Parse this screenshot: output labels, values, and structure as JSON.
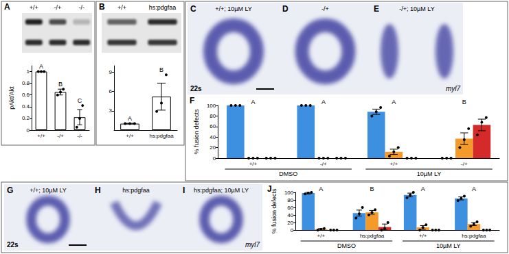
{
  "figure": {
    "blots": [
      {
        "panel": "A",
        "lanes": [
          "+/+",
          "-/+",
          "-/-"
        ]
      },
      {
        "panel": "B",
        "lanes": [
          "+/+",
          "hs:pdgfaa"
        ]
      }
    ],
    "images": [
      {
        "panel": "C",
        "caption": "+/+; 10µM LY",
        "stage": "22s"
      },
      {
        "panel": "D",
        "caption": "-/+"
      },
      {
        "panel": "E",
        "caption": "-/+; 10µM LY",
        "probe": "myl7"
      },
      {
        "panel": "G",
        "caption": "+/+; 10µM LY",
        "stage": "22s"
      },
      {
        "panel": "H",
        "caption": "hs:pdgfaa"
      },
      {
        "panel": "I",
        "caption": "hs:pdgfaa; 10µM LY",
        "probe": "myl7"
      }
    ]
  },
  "chart_data": [
    {
      "type": "bar",
      "ylabel": "pAkt/Akt",
      "categories": [
        "+/+",
        "-/+",
        "-/-"
      ],
      "values": [
        1,
        0.65,
        0.22
      ],
      "error": [
        0,
        0.05,
        0.13
      ],
      "points": [
        [
          1,
          1,
          1
        ],
        [
          0.6,
          0.65,
          0.7
        ],
        [
          0.05,
          0.2,
          0.42
        ]
      ],
      "letters": [
        "A",
        "B",
        "C"
      ],
      "color": "#ffffff",
      "ylim": [
        0,
        1.1
      ],
      "yticks": [
        0,
        0.2,
        0.4,
        0.6,
        0.8,
        1
      ],
      "grid": false
    },
    {
      "type": "bar",
      "categories": [
        "+/+",
        "hs:pdgfaa"
      ],
      "values": [
        1,
        5.2
      ],
      "error": [
        0.05,
        2.1
      ],
      "points": [
        [
          1,
          1,
          1
        ],
        [
          2.9,
          4.2,
          8.6
        ]
      ],
      "letters": [
        "A",
        "B"
      ],
      "color": "#ffffff",
      "ylim": [
        0,
        10
      ],
      "yticks": [
        3,
        6,
        9
      ],
      "grid": false
    },
    {
      "type": "bar",
      "panel": "F",
      "ylabel": "% fusion defects",
      "categories": [
        "+/+",
        "-/+",
        "+/+",
        "-/+"
      ],
      "group_labels": [
        "DMSO",
        "10µM LY"
      ],
      "letters": [
        "A",
        "A",
        "A",
        "B"
      ],
      "series": [
        {
          "color": "#3d8fe0",
          "values": [
            100,
            100,
            88,
            0
          ],
          "error": [
            0,
            0,
            5,
            0
          ],
          "points": [
            [
              100,
              100,
              100
            ],
            [
              100,
              100,
              100
            ],
            [
              80,
              88,
              96
            ],
            [
              0,
              0,
              0
            ]
          ]
        },
        {
          "color": "#f39a2b",
          "values": [
            0,
            0,
            12,
            37
          ],
          "error": [
            0,
            0,
            5,
            11
          ],
          "points": [
            [
              0,
              0,
              0
            ],
            [
              0,
              0,
              0
            ],
            [
              4,
              12,
              20
            ],
            [
              20,
              35,
              56
            ]
          ]
        },
        {
          "color": "#d42a2a",
          "values": [
            0,
            0,
            0,
            63
          ],
          "error": [
            0,
            0,
            0,
            11
          ],
          "points": [
            [
              0,
              0,
              0
            ],
            [
              0,
              0,
              0
            ],
            [
              0,
              0,
              0
            ],
            [
              44,
              68,
              77
            ]
          ]
        }
      ],
      "ylim": [
        0,
        100
      ],
      "yticks": [
        0,
        20,
        40,
        60,
        80,
        100
      ],
      "grid": false
    },
    {
      "type": "bar",
      "panel": "J",
      "ylabel": "% fusion defects",
      "categories": [
        "+/+",
        "hs:pdgfaa",
        "+/+",
        "hs:pdgfaa"
      ],
      "group_labels": [
        "DMSO",
        "10µM LY"
      ],
      "letters": [
        "A",
        "B",
        "A",
        "A"
      ],
      "series": [
        {
          "color": "#3d8fe0",
          "values": [
            98,
            45,
            93,
            84
          ],
          "error": [
            2,
            8,
            5,
            4
          ],
          "points": [
            [
              96,
              98,
              100
            ],
            [
              32,
              43,
              60
            ],
            [
              86,
              93,
              100
            ],
            [
              78,
              84,
              90
            ]
          ]
        },
        {
          "color": "#f39a2b",
          "values": [
            2,
            47,
            7,
            16
          ],
          "error": [
            2,
            5,
            5,
            4
          ],
          "points": [
            [
              0,
              2,
              4
            ],
            [
              40,
              47,
              54
            ],
            [
              0,
              7,
              14
            ],
            [
              10,
              16,
              22
            ]
          ]
        },
        {
          "color": "#d42a2a",
          "values": [
            0,
            8,
            0,
            0
          ],
          "error": [
            0,
            8,
            0,
            0
          ],
          "points": [
            [
              0,
              0,
              0
            ],
            [
              0,
              4,
              20
            ],
            [
              0,
              0,
              0
            ],
            [
              0,
              0,
              0
            ]
          ]
        }
      ],
      "ylim": [
        0,
        100
      ],
      "yticks": [
        0,
        20,
        40,
        60,
        80,
        100
      ],
      "grid": false
    }
  ]
}
